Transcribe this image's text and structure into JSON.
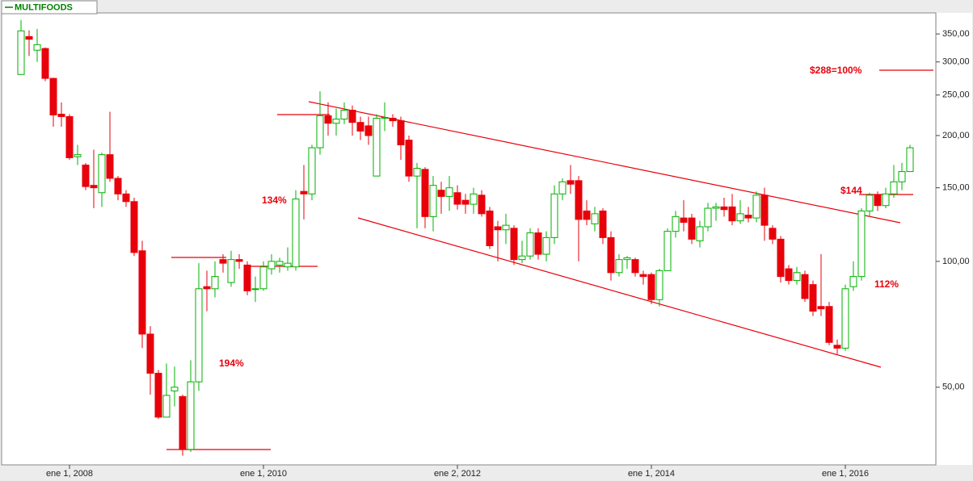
{
  "chart_data": {
    "type": "candlestick",
    "series": [
      {
        "name": "MULTIFOODS",
        "color": "#008000",
        "up_color": "#00b000",
        "down_color": "#e8000b",
        "open": [
          280,
          345,
          320,
          323,
          274,
          225,
          222,
          178,
          170,
          152,
          146,
          180,
          158,
          145,
          139,
          106,
          67,
          54,
          42.4,
          49,
          47.5,
          35.5,
          51.5,
          87,
          86,
          101,
          89,
          101,
          98,
          86,
          86,
          96,
          98,
          97,
          97,
          147,
          145,
          187,
          223,
          214,
          219,
          230,
          215,
          211,
          160,
          220,
          220,
          217,
          195,
          160,
          166,
          128,
          148,
          143,
          146,
          140,
          137,
          144,
          132,
          121,
          119,
          120,
          101,
          103,
          117,
          104,
          114,
          145,
          156,
          156,
          132,
          123,
          132,
          114,
          94,
          101,
          101,
          93,
          93,
          81,
          95,
          118,
          127,
          127,
          112,
          121,
          134,
          135,
          135,
          125,
          129,
          127,
          144,
          120,
          113,
          96,
          90,
          93,
          88,
          78,
          78,
          63,
          62,
          87,
          92,
          132,
          144,
          136,
          145,
          155,
          164
        ],
        "high": [
          378,
          357,
          360,
          325,
          275,
          240,
          225,
          190,
          172,
          185,
          182,
          228,
          160,
          148,
          142,
          112,
          70,
          55,
          57,
          56,
          48,
          58,
          99,
          95,
          100,
          104,
          106,
          104,
          100,
          92,
          100,
          104,
          102,
          108,
          148,
          170,
          190,
          255,
          240,
          232,
          240,
          236,
          222,
          222,
          225,
          240,
          225,
          222,
          200,
          172,
          168,
          160,
          155,
          160,
          152,
          145,
          150,
          148,
          135,
          125,
          130,
          122,
          112,
          120,
          120,
          118,
          152,
          158,
          170,
          160,
          140,
          135,
          134,
          118,
          104,
          103,
          102,
          95,
          94,
          96,
          120,
          132,
          140,
          130,
          125,
          138,
          138,
          142,
          145,
          140,
          135,
          147,
          150,
          122,
          115,
          98,
          97,
          95,
          90,
          104,
          80,
          65,
          88,
          100,
          134,
          146,
          147,
          150,
          170,
          172,
          190
        ],
        "low": [
          280,
          310,
          300,
          270,
          210,
          210,
          175,
          170,
          148,
          134,
          135,
          155,
          140,
          135,
          103,
          62,
          48,
          42,
          42.4,
          45,
          34.3,
          35,
          49,
          76,
          82,
          94,
          87,
          96,
          83,
          80,
          85,
          93,
          94,
          95,
          95,
          126,
          140,
          180,
          200,
          200,
          213,
          200,
          195,
          190,
          160,
          205,
          210,
          175,
          155,
          120,
          120,
          118,
          130,
          132,
          133,
          130,
          130,
          128,
          107,
          100,
          110,
          98,
          99,
          101,
          101,
          100,
          110,
          140,
          145,
          100,
          122,
          118,
          110,
          90,
          92,
          96,
          92,
          88,
          79,
          78,
          95,
          114,
          118,
          110,
          108,
          118,
          125,
          128,
          122,
          123,
          124,
          124,
          112,
          110,
          89,
          88,
          88,
          80,
          74,
          74,
          63,
          60,
          61,
          85,
          90,
          128,
          132,
          134,
          142,
          148,
          164
        ],
        "close": [
          356,
          340,
          330,
          274,
          224,
          222,
          177,
          180,
          151,
          150,
          180,
          158,
          145,
          139,
          105,
          67,
          54,
          42.4,
          47.8,
          50,
          35.5,
          51.5,
          86,
          86,
          92,
          99,
          101,
          100,
          85,
          86,
          97,
          100,
          100,
          99,
          141,
          145,
          187,
          223,
          214,
          219,
          230,
          215,
          205,
          200,
          220,
          221,
          217,
          190,
          160,
          167,
          128,
          152,
          143,
          150,
          137,
          137,
          145,
          130,
          109,
          119,
          122,
          101,
          103,
          117,
          104,
          114,
          145,
          155,
          153,
          126,
          126,
          130,
          114,
          94,
          101,
          102,
          94,
          92,
          81,
          95,
          118,
          128,
          124,
          113,
          121,
          134,
          135,
          133,
          125,
          130,
          127,
          144,
          122,
          113,
          92,
          90,
          94,
          81.5,
          76,
          77,
          64,
          62,
          86,
          92,
          132,
          144,
          136,
          145,
          155,
          164,
          187
        ]
      }
    ],
    "log_y": true,
    "ylim": [
      32.6,
      393
    ],
    "yticks": [
      {
        "value": 50,
        "label": "50,00"
      },
      {
        "value": 100,
        "label": "100,00"
      },
      {
        "value": 150,
        "label": "150,00"
      },
      {
        "value": 200,
        "label": "200,00"
      },
      {
        "value": 250,
        "label": "250,00"
      },
      {
        "value": 300,
        "label": "300,00"
      },
      {
        "value": 350,
        "label": "350,00"
      }
    ],
    "xlim": [
      -2.4,
      113.2
    ],
    "xticks": [
      {
        "value": 6,
        "label": "ene 1, 2008"
      },
      {
        "value": 30,
        "label": "ene 1, 2010"
      },
      {
        "value": 54,
        "label": "ene 2, 2012"
      },
      {
        "value": 78,
        "label": "ene 1, 2014"
      },
      {
        "value": 102,
        "label": "ene 1, 2016"
      }
    ],
    "annotations": [
      "194%",
      "134%",
      "$288=100%",
      "$144",
      "112%"
    ]
  }
}
